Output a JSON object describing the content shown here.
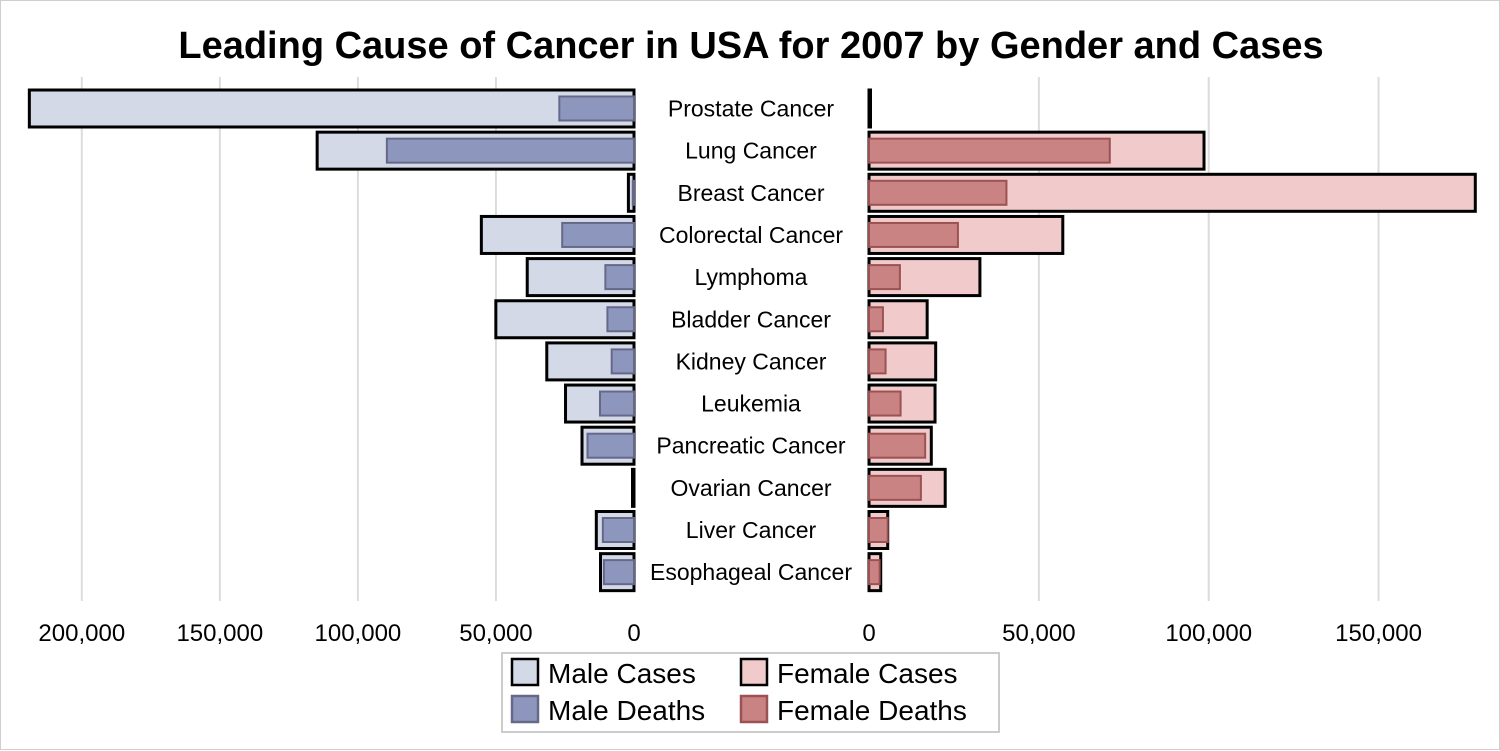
{
  "chart_data": {
    "type": "bar",
    "title": "Leading Cause of Cancer in USA for 2007 by Gender and Cases",
    "categories": [
      "Prostate Cancer",
      "Lung Cancer",
      "Breast Cancer",
      "Colorectal Cancer",
      "Lymphoma",
      "Bladder Cancer",
      "Kidney Cancer",
      "Leukemia",
      "Pancreatic Cancer",
      "Ovarian Cancer",
      "Liver Cancer",
      "Esophageal Cancer"
    ],
    "series": [
      {
        "name": "Male Cases",
        "side": "left",
        "values": [
          219000,
          114760,
          2030,
          55290,
          38670,
          50040,
          31590,
          24800,
          18830,
          0,
          13650,
          12130
        ]
      },
      {
        "name": "Male Deaths",
        "side": "left",
        "values": [
          27050,
          89510,
          450,
          26000,
          10370,
          9630,
          8080,
          12320,
          16840,
          0,
          11280,
          10900
        ]
      },
      {
        "name": "Female Cases",
        "side": "right",
        "values": [
          0,
          98620,
          178480,
          57050,
          32650,
          17120,
          19630,
          19440,
          18340,
          22430,
          5510,
          3450
        ]
      },
      {
        "name": "Female Deaths",
        "side": "right",
        "values": [
          0,
          70880,
          40460,
          26180,
          9100,
          4100,
          4880,
          9300,
          16530,
          15280,
          5500,
          3130
        ]
      }
    ],
    "left_axis": {
      "ticks": [
        200000,
        150000,
        100000,
        50000,
        0
      ],
      "tick_labels": [
        "200,000",
        "150,000",
        "100,000",
        "50,000",
        "0"
      ],
      "max": 220000
    },
    "right_axis": {
      "ticks": [
        0,
        50000,
        100000,
        150000
      ],
      "tick_labels": [
        "0",
        "50,000",
        "100,000",
        "150,000"
      ],
      "max": 178480
    },
    "grid": true,
    "legend": {
      "placement": "bottom-center",
      "columns": 2,
      "entries": [
        "Male Cases",
        "Female Cases",
        "Male Deaths",
        "Female Deaths"
      ]
    },
    "colors": {
      "male_cases_fill": "#d3d9e6",
      "male_deaths_fill": "#8d97bd",
      "female_cases_fill": "#f1cbcb",
      "female_deaths_fill": "#c98383",
      "bar_outline": "#000000",
      "death_outline": "#66688a",
      "female_death_outline": "#9c5252",
      "grid": "#dcdcdc"
    }
  }
}
